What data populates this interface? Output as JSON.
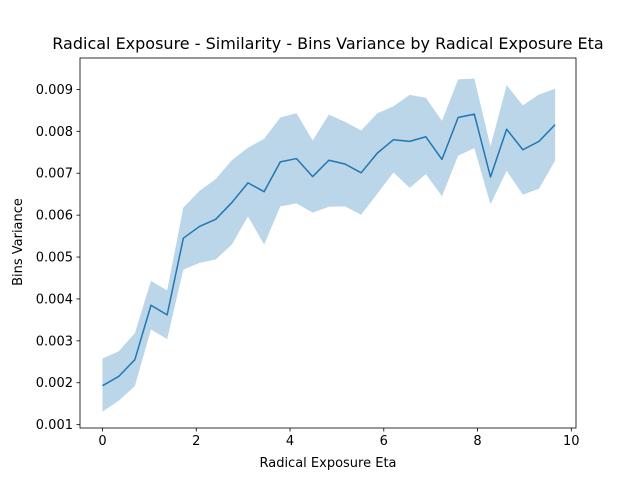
{
  "chart_data": {
    "type": "line",
    "title": "Radical Exposure - Similarity - Bins Variance by Radical Exposure Eta",
    "xlabel": "Radical Exposure Eta",
    "ylabel": "Bins Variance",
    "xlim": [
      -0.48,
      10.1
    ],
    "ylim": [
      0.00092,
      0.00975
    ],
    "xticks": [
      0,
      2,
      4,
      6,
      8,
      10
    ],
    "xtick_labels": [
      "0",
      "2",
      "4",
      "6",
      "8",
      "10"
    ],
    "yticks": [
      0.001,
      0.002,
      0.003,
      0.004,
      0.005,
      0.006,
      0.007,
      0.008,
      0.009
    ],
    "ytick_labels": [
      "0.001",
      "0.002",
      "0.003",
      "0.004",
      "0.005",
      "0.006",
      "0.007",
      "0.008",
      "0.009"
    ],
    "grid": false,
    "line_color": "#1f77b4",
    "band_color": "#1f77b4",
    "series": [
      {
        "x": [
          0,
          0.345,
          0.69,
          1.034,
          1.379,
          1.724,
          2.069,
          2.414,
          2.759,
          3.103,
          3.448,
          3.793,
          4.138,
          4.483,
          4.828,
          5.172,
          5.517,
          5.862,
          6.207,
          6.552,
          6.897,
          7.241,
          7.586,
          7.931,
          8.276,
          8.621,
          8.966,
          9.31,
          9.655
        ],
        "values": [
          0.00193,
          0.00215,
          0.00255,
          0.00385,
          0.00362,
          0.00545,
          0.00573,
          0.0059,
          0.0063,
          0.00677,
          0.00656,
          0.00727,
          0.00735,
          0.00692,
          0.00731,
          0.00722,
          0.00701,
          0.00748,
          0.0078,
          0.00776,
          0.00787,
          0.00733,
          0.00833,
          0.00841,
          0.00691,
          0.00805,
          0.00756,
          0.00776,
          0.00816
        ],
        "lower": [
          0.00131,
          0.00157,
          0.00192,
          0.00327,
          0.00304,
          0.0047,
          0.00486,
          0.00494,
          0.0053,
          0.00597,
          0.0053,
          0.00621,
          0.00628,
          0.00606,
          0.0062,
          0.00621,
          0.00601,
          0.00651,
          0.00702,
          0.00665,
          0.00698,
          0.00645,
          0.00742,
          0.0076,
          0.00626,
          0.00706,
          0.00649,
          0.00663,
          0.0073
        ],
        "upper": [
          0.00258,
          0.00275,
          0.00318,
          0.00443,
          0.0042,
          0.00618,
          0.00658,
          0.00686,
          0.00731,
          0.00761,
          0.00782,
          0.00833,
          0.00843,
          0.00778,
          0.0084,
          0.00823,
          0.00802,
          0.00843,
          0.0086,
          0.00887,
          0.0088,
          0.00825,
          0.00924,
          0.00926,
          0.00764,
          0.0091,
          0.00862,
          0.00888,
          0.00902
        ]
      }
    ]
  }
}
